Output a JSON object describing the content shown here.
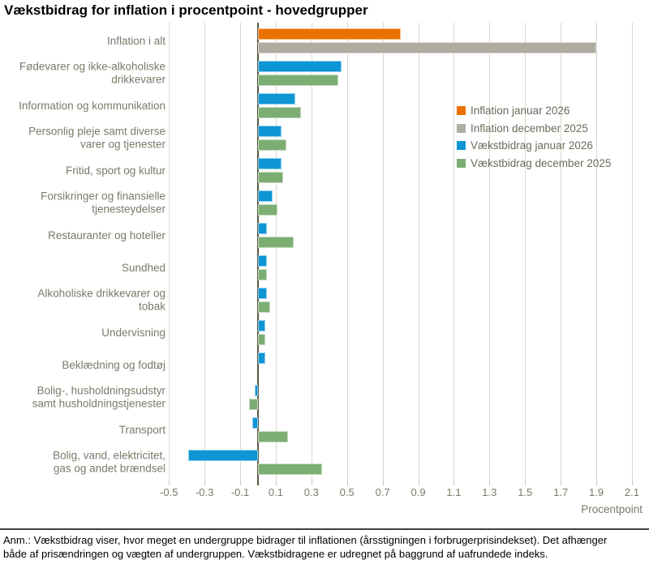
{
  "title": "Vækstbidrag for inflation i procentpoint - hovedgrupper",
  "footnote": {
    "line1": "Anm.: Vækstbidrag viser, hvor meget en undergruppe bidrager til inflationen (årsstigningen i forbrugerprisindekset). Det afhænger",
    "line2": "både af prisændringen og vægten af undergruppen. Vækstbidragene er udregnet på baggrund af uafrundede indeks."
  },
  "legend": [
    {
      "label": "Inflation januar 2026",
      "color": "#EB7100"
    },
    {
      "label": "Inflation december 2025",
      "color": "#AFACA1"
    },
    {
      "label": "Vækstbidrag januar 2026",
      "color": "#0E95D4"
    },
    {
      "label": "Vækstbidrag december 2025",
      "color": "#7CAE73"
    }
  ],
  "colors": {
    "background": "#FFFFFF",
    "gridline": "#D9D8CB",
    "zero_line": "#5A5843",
    "axis_text": "#7C796A",
    "legend_text": "#6C6A5B",
    "divider": "#404040"
  },
  "chart_data": {
    "type": "bar",
    "orientation": "horizontal",
    "title": "Vækstbidrag for inflation i procentpoint - hovedgrupper",
    "axis": {
      "label": "Procentpoint",
      "min": -0.5,
      "max": 2.1,
      "tick_labels": [
        "-0.5",
        "-0.3",
        "-0.1",
        "0.1",
        "0.3",
        "0.5",
        "0.7",
        "0.9",
        "1.1",
        "1.3",
        "1.5",
        "1.7",
        "1.9",
        "2.1"
      ],
      "grid": true
    },
    "legend_position": "upper right",
    "categories": [
      "Inflation i alt",
      "Fødevarer og ikke-alkoholiske\ndrikkevarer",
      "Information og kommunikation",
      "Personlig pleje samt diverse\nvarer og tjenester",
      "Fritid, sport og kultur",
      "Forsikringer og finansielle\ntjenesteydelser",
      "Restauranter og hoteller",
      "Sundhed",
      "Alkoholiske drikkevarer og\ntobak",
      "Undervisning",
      "Beklædning og fodtøj",
      "Bolig-, husholdningsudstyr\nsamt husholdningstjenester",
      "Transport",
      "Bolig, vand, elektricitet,\ngas og andet brændsel"
    ],
    "series": [
      {
        "name": "Inflation januar 2026",
        "color": "#EB7100",
        "values": [
          0.8,
          null,
          null,
          null,
          null,
          null,
          null,
          null,
          null,
          null,
          null,
          null,
          null,
          null
        ]
      },
      {
        "name": "Inflation december 2025",
        "color": "#AFACA1",
        "values": [
          1.9,
          null,
          null,
          null,
          null,
          null,
          null,
          null,
          null,
          null,
          null,
          null,
          null,
          null
        ]
      },
      {
        "name": "Vækstbidrag januar 2026",
        "color": "#0E95D4",
        "values": [
          null,
          0.47,
          0.21,
          0.13,
          0.13,
          0.08,
          0.05,
          0.05,
          0.05,
          0.04,
          0.04,
          -0.02,
          -0.03,
          -0.39
        ]
      },
      {
        "name": "Vækstbidrag december 2025",
        "color": "#7CAE73",
        "values": [
          null,
          0.45,
          0.24,
          0.16,
          0.14,
          0.11,
          0.2,
          0.05,
          0.07,
          0.04,
          0.0,
          -0.05,
          0.17,
          0.36
        ]
      }
    ]
  }
}
